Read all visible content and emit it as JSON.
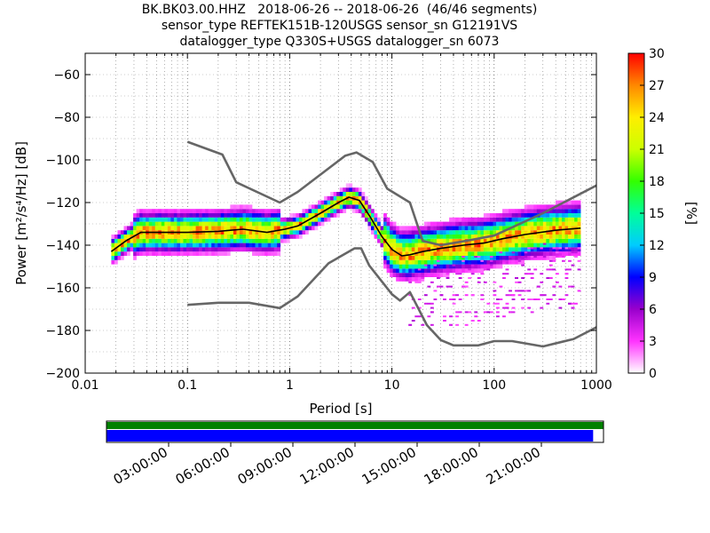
{
  "chart_data": [
    {
      "type": "heatmap",
      "title": [
        "BK.BK03.00.HHZ   2018-06-26 -- 2018-06-26  (46/46 segments)",
        "sensor_type REFTEK151B-120USGS sensor_sn G12191VS",
        "datalogger_type Q330S+USGS datalogger_sn 6073"
      ],
      "xlabel": "Period [s]",
      "ylabel": "Power [m²/s⁴/Hz] [dB]",
      "x_scale": "log",
      "xlim": [
        0.01,
        1000
      ],
      "ylim": [
        -200,
        -50
      ],
      "x_ticks": [
        "0.01",
        "0.1",
        "1",
        "10",
        "100",
        "1000"
      ],
      "x_tick_values": [
        0.01,
        0.1,
        1,
        10,
        100,
        1000
      ],
      "y_ticks": [
        "−60",
        "−80",
        "−100",
        "−120",
        "−140",
        "−160",
        "−180",
        "−200"
      ],
      "y_tick_values": [
        -60,
        -80,
        -100,
        -120,
        -140,
        -160,
        -180,
        -200
      ],
      "grid": true,
      "colorbar": {
        "label": "[%]",
        "range": [
          0,
          30
        ],
        "ticks": [
          "0",
          "3",
          "6",
          "9",
          "12",
          "15",
          "18",
          "21",
          "24",
          "27",
          "30"
        ],
        "tick_values": [
          0,
          3,
          6,
          9,
          12,
          15,
          18,
          21,
          24,
          27,
          30
        ],
        "colors": [
          "#ffffff",
          "#ff33ff",
          "#9900cc",
          "#0000ff",
          "#00ccff",
          "#00ff99",
          "#33ff00",
          "#ccff00",
          "#ffee00",
          "#ff8800",
          "#ff0000"
        ]
      },
      "series": [
        {
          "color": "#666666",
          "x": [
            0.1,
            0.22,
            0.3,
            0.8,
            1.2,
            3.5,
            4.5,
            6.5,
            9,
            15,
            20,
            30,
            60,
            100,
            300,
            1000
          ],
          "y": [
            -91.5,
            -97.5,
            -110.5,
            -120,
            -115,
            -98,
            -96.5,
            -101,
            -113.5,
            -120,
            -138,
            -140,
            -137.5,
            -135.5,
            -125,
            -112
          ]
        },
        {
          "color": "#666666",
          "x": [
            0.1,
            0.2,
            0.4,
            0.8,
            1.2,
            2.4,
            4.3,
            5,
            6,
            10,
            12,
            15,
            22,
            30,
            40,
            70,
            100,
            150,
            300,
            600,
            1000
          ],
          "y": [
            -168,
            -167,
            -167,
            -169.5,
            -164,
            -148.5,
            -141.5,
            -141.5,
            -149.5,
            -163,
            -166,
            -162,
            -177.5,
            -184.5,
            -187,
            -187,
            -185,
            -185,
            -187.5,
            -184,
            -178.5
          ]
        },
        {
          "color": "#000000",
          "x": [
            0.018,
            0.025,
            0.035,
            0.06,
            0.1,
            0.2,
            0.35,
            0.6,
            0.9,
            1.2,
            2,
            3,
            3.8,
            4.8,
            6,
            8,
            10,
            12.5,
            15,
            20,
            30,
            50,
            80,
            120,
            200,
            400,
            700
          ],
          "y": [
            -143,
            -138,
            -134,
            -134,
            -134,
            -133.5,
            -132.5,
            -134,
            -132.5,
            -131,
            -125,
            -120,
            -117.5,
            -119,
            -126,
            -136,
            -142,
            -145,
            -144.5,
            -143,
            -141.5,
            -140,
            -139,
            -137,
            -135,
            -133,
            -132
          ]
        }
      ]
    },
    {
      "type": "bar",
      "x_ticks": [
        "03:00:00",
        "06:00:00",
        "09:00:00",
        "12:00:00",
        "15:00:00",
        "18:00:00",
        "21:00:00"
      ],
      "x_tick_values": [
        3,
        6,
        9,
        12,
        15,
        18,
        21
      ],
      "xlim": [
        0,
        24
      ],
      "series": [
        {
          "color": "#008000",
          "coverage": [
            0,
            24
          ]
        },
        {
          "color": "#0000ff",
          "coverage": [
            0,
            23.5
          ]
        }
      ]
    }
  ]
}
